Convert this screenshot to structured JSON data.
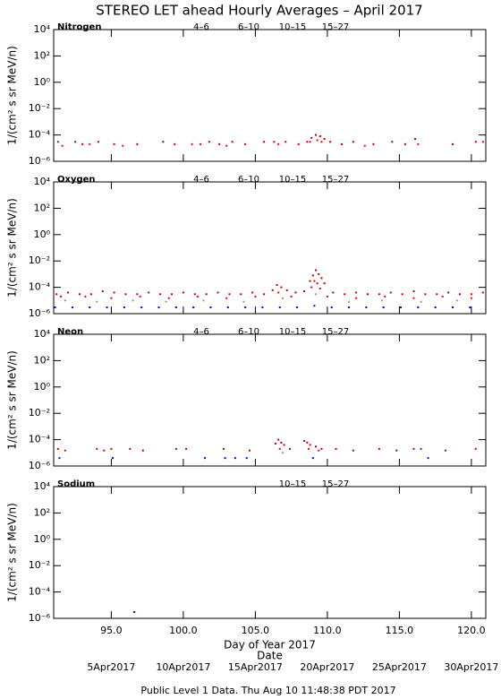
{
  "header": {
    "title": "STEREO LET ahead Hourly Averages – April 2017"
  },
  "footer": "Public Level 1 Data. Thu Aug 10 11:48:38 PDT 2017",
  "chart_data": [
    {
      "type": "scatter",
      "title": "Nitrogen",
      "ylabel": "1/(cm² s sr MeV/n)",
      "yscale": "log",
      "ylim": [
        1e-06,
        10000
      ],
      "yticks": [
        {
          "value": 10000,
          "label": "10⁴"
        },
        {
          "value": 100,
          "label": "10²"
        },
        {
          "value": 1,
          "label": "10⁰"
        },
        {
          "value": 0.01,
          "label": "10⁻²"
        },
        {
          "value": 0.0001,
          "label": "10⁻⁴"
        },
        {
          "value": 1e-06,
          "label": "10⁻⁶"
        }
      ],
      "series": [
        {
          "name": "4–6",
          "color": "#c00000",
          "x": [
            91.3,
            92.5,
            93.0,
            94.1,
            95.2,
            96.8,
            98.6,
            99.4,
            101.2,
            101.8,
            102.5,
            103.4,
            104.3,
            105.6,
            106.3,
            107.1,
            108.0,
            108.6,
            108.9,
            109.2,
            109.5,
            109.8,
            110.2,
            111.0,
            111.8,
            113.2,
            114.5,
            115.4,
            116.1,
            118.7,
            120.3,
            120.8
          ],
          "values": [
            3e-05,
            3e-05,
            2e-05,
            3e-05,
            2e-05,
            2e-05,
            3e-05,
            2e-05,
            2e-05,
            3e-05,
            2e-05,
            3e-05,
            2e-05,
            3e-05,
            3e-05,
            3e-05,
            2e-05,
            3e-05,
            6e-05,
            0.0001,
            8e-05,
            5e-05,
            3e-05,
            2e-05,
            3e-05,
            2e-05,
            3e-05,
            2e-05,
            5e-05,
            2e-05,
            3e-05,
            3e-05
          ]
        },
        {
          "name": "6–10",
          "color": "#ff0000",
          "x": [
            91.6,
            93.5,
            95.8,
            100.6,
            103.0,
            106.6,
            108.8,
            109.3,
            109.6,
            112.6,
            116.3
          ],
          "values": [
            1.5e-05,
            2e-05,
            1.5e-05,
            2e-05,
            1.5e-05,
            2e-05,
            3e-05,
            4e-05,
            3e-05,
            1.5e-05,
            2e-05
          ]
        },
        {
          "name": "10–15",
          "color": "#999999",
          "x": [],
          "values": []
        },
        {
          "name": "15–27",
          "color": "#0000ff",
          "x": [],
          "values": []
        }
      ]
    },
    {
      "type": "scatter",
      "title": "Oxygen",
      "ylabel": "1/(cm² s sr MeV/n)",
      "yscale": "log",
      "ylim": [
        1e-06,
        10000
      ],
      "yticks": [
        {
          "value": 10000,
          "label": "10⁴"
        },
        {
          "value": 100,
          "label": "10²"
        },
        {
          "value": 1,
          "label": "10⁰"
        },
        {
          "value": 0.01,
          "label": "10⁻²"
        },
        {
          "value": 0.0001,
          "label": "10⁻⁴"
        },
        {
          "value": 1e-06,
          "label": "10⁻⁶"
        }
      ],
      "series": [
        {
          "name": "4–6",
          "color": "#c00000",
          "x": [
            91.2,
            92.0,
            92.8,
            93.6,
            94.4,
            95.2,
            96.0,
            96.8,
            97.6,
            98.4,
            99.2,
            100.0,
            100.8,
            101.6,
            102.4,
            103.2,
            104.0,
            104.8,
            105.6,
            106.2,
            106.5,
            106.8,
            107.2,
            107.8,
            108.4,
            108.8,
            109.0,
            109.2,
            109.4,
            109.6,
            109.8,
            110.4,
            111.2,
            112.0,
            112.8,
            113.6,
            114.4,
            115.2,
            116.0,
            116.8,
            117.6,
            118.4,
            119.2,
            120.0,
            120.8
          ],
          "values": [
            3e-05,
            4e-05,
            3e-05,
            3e-05,
            5e-05,
            4e-05,
            3e-05,
            3e-05,
            4e-05,
            3e-05,
            3e-05,
            4e-05,
            3e-05,
            3e-05,
            4e-05,
            3e-05,
            3e-05,
            4e-05,
            3e-05,
            6e-05,
            0.00015,
            0.0001,
            6e-05,
            4e-05,
            5e-05,
            0.0003,
            0.0008,
            0.002,
            0.001,
            0.0005,
            0.0002,
            4e-05,
            3e-05,
            4e-05,
            3e-05,
            3e-05,
            4e-05,
            3e-05,
            5e-05,
            3e-05,
            3e-05,
            4e-05,
            3e-05,
            3e-05,
            4e-05
          ]
        },
        {
          "name": "6–10",
          "color": "#ff0000",
          "x": [
            91.5,
            93.2,
            95.0,
            97.0,
            99.0,
            101.0,
            103.0,
            105.0,
            106.6,
            107.5,
            108.9,
            109.1,
            109.3,
            109.5,
            110.0,
            112.0,
            114.0,
            116.0,
            118.0,
            120.0
          ],
          "values": [
            2e-05,
            2e-05,
            1.5e-05,
            2e-05,
            1.5e-05,
            2e-05,
            1.5e-05,
            2e-05,
            4e-05,
            2e-05,
            0.0001,
            0.0003,
            0.0002,
            8e-05,
            2e-05,
            1.5e-05,
            2e-05,
            1.5e-05,
            2e-05,
            1.5e-05
          ]
        },
        {
          "name": "10–15",
          "color": "#999999",
          "x": [
            91.8,
            94.0,
            96.5,
            98.8,
            101.4,
            104.2,
            106.9,
            109.2,
            111.5,
            113.8,
            116.5,
            119.0
          ],
          "values": [
            1e-05,
            8e-06,
            1e-05,
            8e-06,
            1e-05,
            8e-06,
            1.5e-05,
            3e-05,
            8e-06,
            1e-05,
            8e-06,
            1e-05
          ]
        },
        {
          "name": "15–27",
          "color": "#0000ff",
          "x": [
            91.1,
            92.3,
            93.5,
            94.7,
            95.9,
            97.1,
            98.3,
            99.5,
            100.7,
            101.9,
            103.1,
            104.3,
            105.5,
            106.7,
            107.9,
            109.1,
            110.3,
            111.5,
            112.7,
            113.9,
            115.1,
            116.3,
            117.5,
            118.7,
            119.9
          ],
          "values": [
            3e-06,
            3e-06,
            3e-06,
            3e-06,
            3e-06,
            3e-06,
            3e-06,
            3e-06,
            3e-06,
            3e-06,
            3e-06,
            3e-06,
            3e-06,
            3e-06,
            3e-06,
            4e-06,
            3e-06,
            3e-06,
            3e-06,
            3e-06,
            3e-06,
            3e-06,
            3e-06,
            3e-06,
            3e-06
          ]
        }
      ]
    },
    {
      "type": "scatter",
      "title": "Neon",
      "ylabel": "1/(cm² s sr MeV/n)",
      "yscale": "log",
      "ylim": [
        1e-06,
        10000
      ],
      "yticks": [
        {
          "value": 10000,
          "label": "10⁴"
        },
        {
          "value": 100,
          "label": "10²"
        },
        {
          "value": 1,
          "label": "10⁰"
        },
        {
          "value": 0.01,
          "label": "10⁻²"
        },
        {
          "value": 0.0001,
          "label": "10⁻⁴"
        },
        {
          "value": 1e-06,
          "label": "10⁻⁶"
        }
      ],
      "series": [
        {
          "name": "4–6",
          "color": "#c00000",
          "x": [
            91.3,
            94.0,
            94.5,
            95.0,
            96.3,
            97.2,
            99.5,
            100.2,
            102.8,
            104.6,
            106.4,
            106.6,
            106.8,
            107.0,
            107.4,
            108.4,
            108.6,
            108.8,
            109.2,
            109.6,
            110.6,
            111.8,
            113.6,
            114.8,
            116.0,
            116.5,
            118.2,
            120.3
          ],
          "values": [
            2e-05,
            2e-05,
            1.5e-05,
            2e-05,
            2e-05,
            1.5e-05,
            2e-05,
            2e-05,
            2e-05,
            1.5e-05,
            5e-05,
            0.0001,
            6e-05,
            4e-05,
            2e-05,
            8e-05,
            6e-05,
            4e-05,
            3e-05,
            2e-05,
            2e-05,
            1.5e-05,
            2e-05,
            1.5e-05,
            2e-05,
            2e-05,
            1.5e-05,
            2e-05
          ]
        },
        {
          "name": "6–10",
          "color": "#ff0000",
          "x": [
            91.8,
            106.7,
            108.7,
            109.4
          ],
          "values": [
            1.5e-05,
            2e-05,
            2e-05,
            1.5e-05
          ]
        },
        {
          "name": "10–15",
          "color": "#999999",
          "x": [
            106.9
          ],
          "values": [
            1e-05
          ]
        },
        {
          "name": "15–27",
          "color": "#0000ff",
          "x": [
            91.4,
            95.1,
            101.5,
            102.9,
            103.6,
            104.4,
            109.0,
            117.0
          ],
          "values": [
            4e-06,
            4e-06,
            4e-06,
            4e-06,
            4e-06,
            4e-06,
            4e-06,
            4e-06
          ]
        }
      ]
    },
    {
      "type": "scatter",
      "title": "Sodium",
      "ylabel": "1/(cm² s sr MeV/n)",
      "yscale": "log",
      "ylim": [
        1e-06,
        10000
      ],
      "yticks": [
        {
          "value": 10000,
          "label": "10⁴"
        },
        {
          "value": 100,
          "label": "10²"
        },
        {
          "value": 1,
          "label": "10⁰"
        },
        {
          "value": 0.01,
          "label": "10⁻²"
        },
        {
          "value": 0.0001,
          "label": "10⁻⁴"
        },
        {
          "value": 1e-06,
          "label": "10⁻⁶"
        }
      ],
      "xlabel": "Day of Year 2017",
      "xlim": [
        91,
        121
      ],
      "xticks": [
        {
          "value": 95,
          "label": "95.0"
        },
        {
          "value": 100,
          "label": "100.0"
        },
        {
          "value": 105,
          "label": "105.0"
        },
        {
          "value": 110,
          "label": "110.0"
        },
        {
          "value": 115,
          "label": "115.0"
        },
        {
          "value": 120,
          "label": "120.0"
        }
      ],
      "x2label": "Date",
      "x2ticks": [
        {
          "value": 95,
          "label": "5Apr2017"
        },
        {
          "value": 100,
          "label": "10Apr2017"
        },
        {
          "value": 105,
          "label": "15Apr2017"
        },
        {
          "value": 110,
          "label": "20Apr2017"
        },
        {
          "value": 115,
          "label": "25Apr2017"
        },
        {
          "value": 120,
          "label": "30Apr2017"
        }
      ],
      "series": [
        {
          "name": "10–15",
          "color": "#999999",
          "x": [],
          "values": []
        },
        {
          "name": "15–27",
          "color": "#0000ff",
          "x": [
            96.6
          ],
          "values": [
            3e-06
          ]
        }
      ]
    }
  ]
}
